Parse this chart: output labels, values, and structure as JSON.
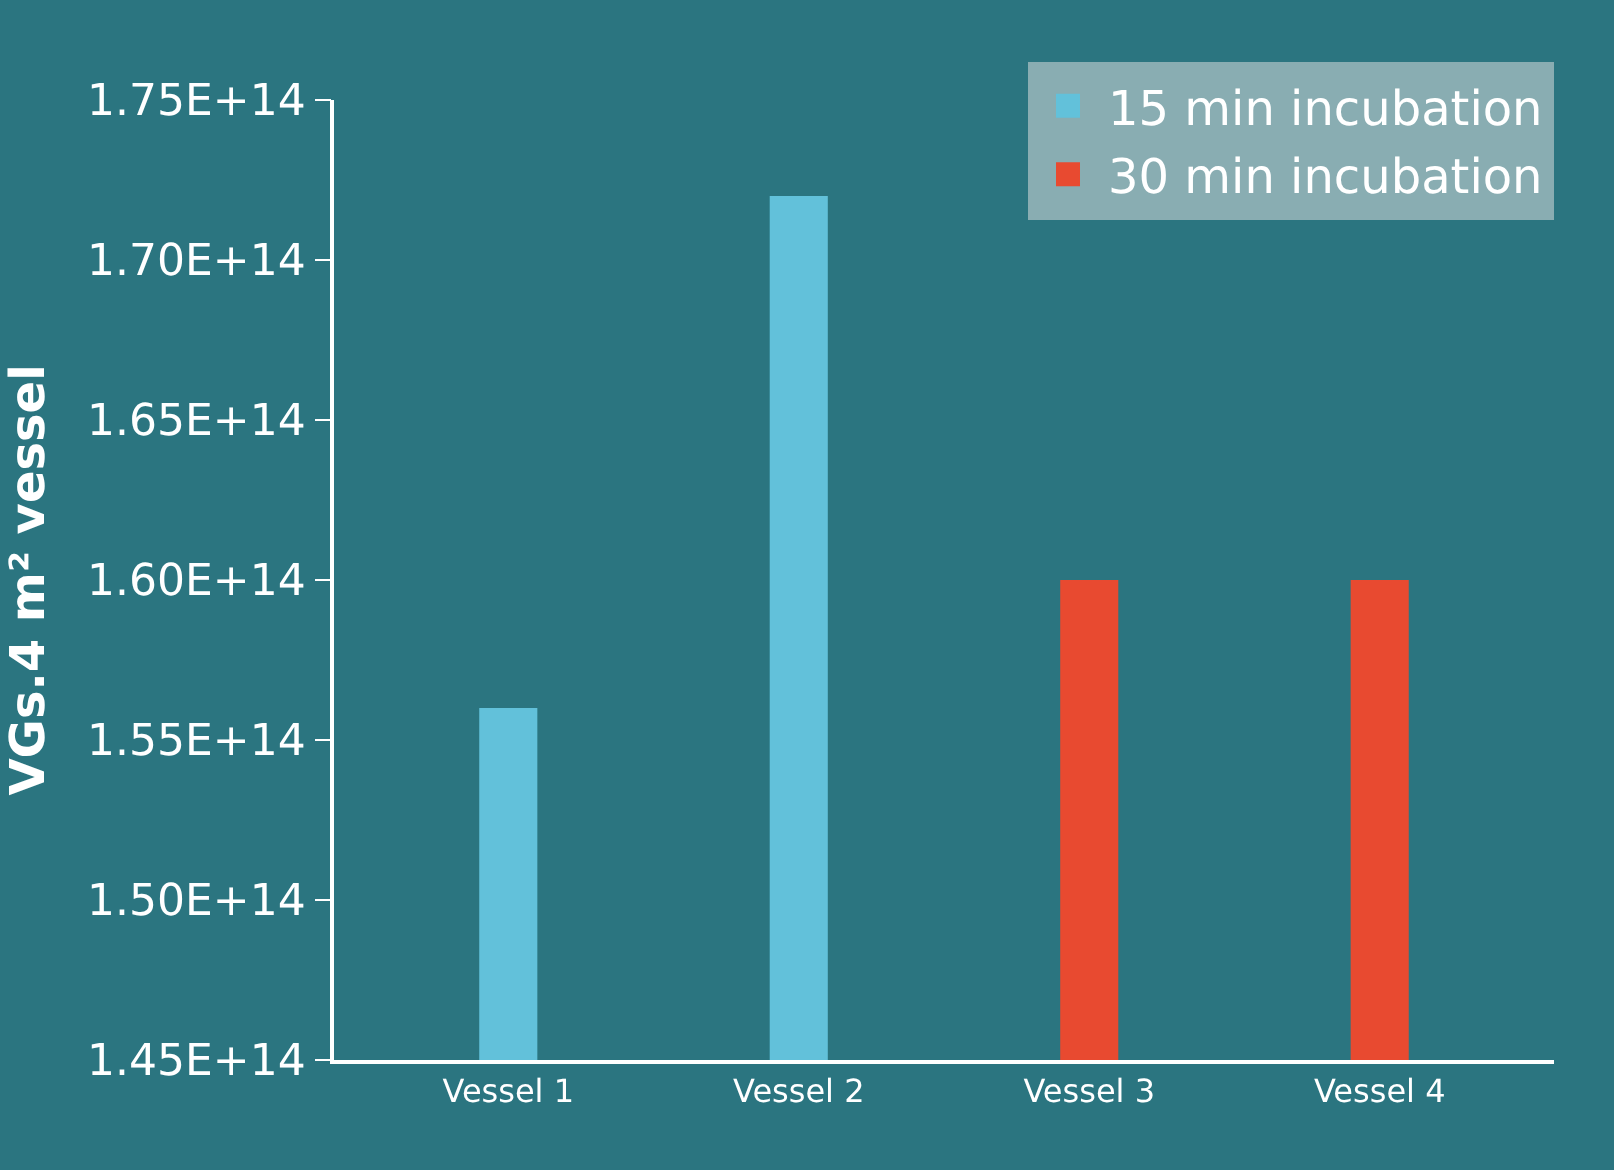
{
  "chart_data": {
    "type": "bar",
    "ylabel": "VGs.4 m² vessel",
    "categories": [
      "Vessel 1",
      "Vessel 2",
      "Vessel 3",
      "Vessel 4"
    ],
    "series": [
      {
        "name": "15 min incubation",
        "color": "#62c1da",
        "values": [
          156000000000000.0,
          172000000000000.0,
          null,
          null
        ]
      },
      {
        "name": "30 min incubation",
        "color": "#e84a30",
        "values": [
          null,
          null,
          160000000000000.0,
          160000000000000.0
        ]
      }
    ],
    "ylim": [
      145000000000000.0,
      175000000000000.0
    ],
    "yticks": [
      {
        "value": 145000000000000.0,
        "label": "1.45E+14"
      },
      {
        "value": 150000000000000.0,
        "label": "1.50E+14"
      },
      {
        "value": 155000000000000.0,
        "label": "1.55E+14"
      },
      {
        "value": 160000000000000.0,
        "label": "1.60E+14"
      },
      {
        "value": 165000000000000.0,
        "label": "1.65E+14"
      },
      {
        "value": 170000000000000.0,
        "label": "1.70E+14"
      },
      {
        "value": 175000000000000.0,
        "label": "1.75E+14"
      }
    ],
    "grid": false,
    "legend": "top right"
  }
}
